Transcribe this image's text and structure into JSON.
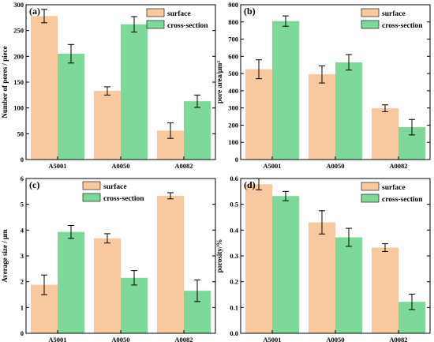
{
  "colors": {
    "surface": "#f8c89e",
    "cross_section": "#7ed89a",
    "axis": "#000000"
  },
  "legend": {
    "surface": "surface",
    "cross_section": "cross-section"
  },
  "chart_data": [
    {
      "type": "bar",
      "panel_label": "(a)",
      "categories": [
        "A5001",
        "A0050",
        "A0082"
      ],
      "ylabel": "Number of pores / piece",
      "ylim": [
        0,
        300
      ],
      "yticks": [
        0,
        50,
        100,
        150,
        200,
        250,
        300
      ],
      "legend_position": "top-right",
      "series": [
        {
          "name": "surface",
          "values": [
            278,
            133,
            56
          ],
          "errors": [
            13,
            8,
            15
          ]
        },
        {
          "name": "cross-section",
          "values": [
            205,
            262,
            113
          ],
          "errors": [
            18,
            15,
            12
          ]
        }
      ]
    },
    {
      "type": "bar",
      "panel_label": "(b)",
      "categories": [
        "A5001",
        "A0050",
        "A0082"
      ],
      "ylabel": "pore area/μm²",
      "ylim": [
        0,
        900
      ],
      "yticks": [
        0,
        100,
        200,
        300,
        400,
        500,
        600,
        700,
        800,
        900
      ],
      "legend_position": "top-right",
      "series": [
        {
          "name": "surface",
          "values": [
            525,
            495,
            298
          ],
          "errors": [
            55,
            50,
            20
          ]
        },
        {
          "name": "cross-section",
          "values": [
            805,
            565,
            188
          ],
          "errors": [
            30,
            45,
            45
          ]
        }
      ]
    },
    {
      "type": "bar",
      "panel_label": "(c)",
      "categories": [
        "A5001",
        "A0050",
        "A0082"
      ],
      "ylabel": "Average size / μm",
      "ylim": [
        0,
        6
      ],
      "yticks": [
        0,
        1,
        2,
        3,
        4,
        5,
        6
      ],
      "legend_position": "top-center",
      "series": [
        {
          "name": "surface",
          "values": [
            1.88,
            3.68,
            5.33
          ],
          "errors": [
            0.38,
            0.18,
            0.12
          ]
        },
        {
          "name": "cross-section",
          "values": [
            3.93,
            2.15,
            1.65
          ],
          "errors": [
            0.25,
            0.28,
            0.42
          ]
        }
      ]
    },
    {
      "type": "bar",
      "panel_label": "(d)",
      "categories": [
        "A5001",
        "A0050",
        "A0082"
      ],
      "ylabel": "porosity/%",
      "ylim": [
        0,
        0.6
      ],
      "yticks": [
        0.0,
        0.1,
        0.2,
        0.3,
        0.4,
        0.5,
        0.6
      ],
      "legend_position": "top-right",
      "series": [
        {
          "name": "surface",
          "values": [
            0.578,
            0.43,
            0.332
          ],
          "errors": [
            0.022,
            0.045,
            0.015
          ]
        },
        {
          "name": "cross-section",
          "values": [
            0.532,
            0.372,
            0.122
          ],
          "errors": [
            0.018,
            0.035,
            0.03
          ]
        }
      ]
    }
  ]
}
